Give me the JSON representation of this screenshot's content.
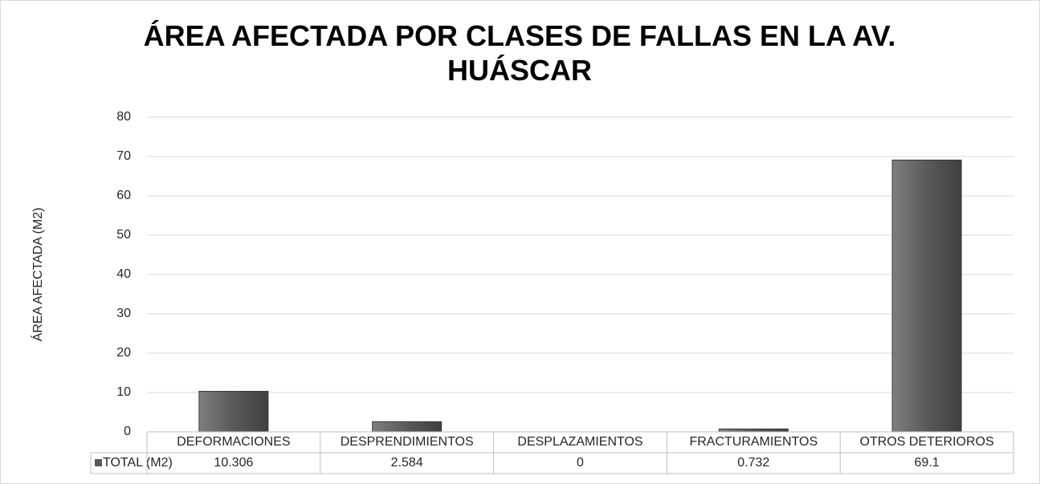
{
  "chart_data": {
    "type": "bar",
    "title": "ÁREA AFECTADA POR CLASES DE FALLAS EN LA AV. HUÁSCAR",
    "y_label": "ÁREA AFECTADA (M2)",
    "categories": [
      "DEFORMACIONES",
      "DESPRENDIMIENTOS",
      "DESPLAZAMIENTOS",
      "FRACTURAMIENTOS",
      "OTROS DETERIOROS"
    ],
    "series": [
      {
        "name": "TOTAL (M2)",
        "color": "#595959",
        "values": [
          10.306,
          2.584,
          0,
          0.732,
          69.1
        ]
      }
    ],
    "ylim": [
      0,
      80
    ],
    "yticks": [
      0,
      10,
      20,
      30,
      40,
      50,
      60,
      70,
      80
    ],
    "grid": true,
    "data_table": true
  }
}
